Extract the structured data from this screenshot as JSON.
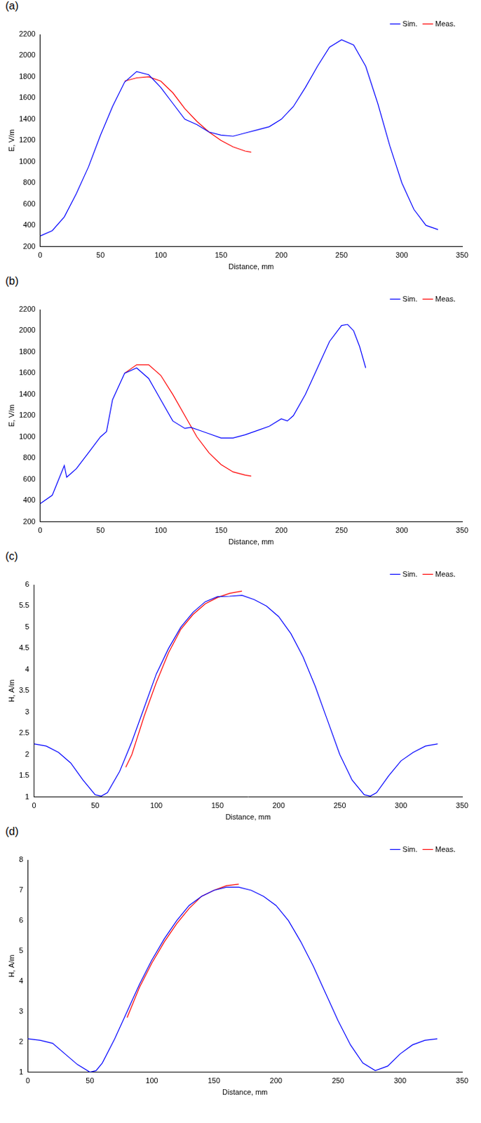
{
  "chart_data": [
    {
      "panel": "(a)",
      "type": "line",
      "x_label": "Distance, mm",
      "y_label": "E, V/m",
      "xlim": [
        0,
        350
      ],
      "xticks": [
        0,
        50,
        100,
        150,
        200,
        250,
        300,
        350
      ],
      "ylim": [
        200,
        2200
      ],
      "yticks": [
        200,
        400,
        600,
        800,
        1000,
        1200,
        1400,
        1600,
        1800,
        2000,
        2200
      ],
      "grid": false,
      "legend": "upper right",
      "series": [
        {
          "name": "Sim.",
          "color": "#0000ff",
          "x": [
            0,
            10,
            20,
            30,
            40,
            50,
            60,
            70,
            80,
            90,
            100,
            110,
            120,
            130,
            140,
            150,
            160,
            170,
            180,
            190,
            200,
            210,
            220,
            230,
            240,
            250,
            260,
            270,
            280,
            290,
            300,
            310,
            320,
            330
          ],
          "values": [
            300,
            350,
            480,
            700,
            950,
            1250,
            1520,
            1750,
            1850,
            1820,
            1700,
            1550,
            1400,
            1350,
            1280,
            1250,
            1240,
            1270,
            1300,
            1330,
            1400,
            1520,
            1700,
            1900,
            2080,
            2150,
            2100,
            1900,
            1550,
            1150,
            800,
            550,
            400,
            360
          ]
        },
        {
          "name": "Meas.",
          "color": "#ff0000",
          "x": [
            70,
            80,
            90,
            100,
            110,
            120,
            130,
            140,
            150,
            160,
            170,
            175
          ],
          "values": [
            1760,
            1790,
            1800,
            1760,
            1650,
            1500,
            1380,
            1280,
            1200,
            1140,
            1100,
            1090
          ]
        }
      ]
    },
    {
      "panel": "(b)",
      "type": "line",
      "x_label": "Distance, mm",
      "y_label": "E, V/m",
      "xlim": [
        0,
        350
      ],
      "xticks": [
        0,
        50,
        100,
        150,
        200,
        250,
        300,
        350
      ],
      "ylim": [
        200,
        2200
      ],
      "yticks": [
        200,
        400,
        600,
        800,
        1000,
        1200,
        1400,
        1600,
        1800,
        2000,
        2200
      ],
      "grid": false,
      "legend": "upper right",
      "series": [
        {
          "name": "Sim.",
          "color": "#0000ff",
          "x": [
            0,
            10,
            20,
            22,
            30,
            40,
            50,
            55,
            60,
            70,
            80,
            90,
            100,
            110,
            120,
            125,
            130,
            140,
            150,
            160,
            170,
            180,
            190,
            200,
            205,
            210,
            220,
            230,
            240,
            250,
            255,
            260,
            265,
            270
          ],
          "values": [
            370,
            450,
            730,
            620,
            700,
            850,
            1000,
            1050,
            1350,
            1600,
            1650,
            1550,
            1350,
            1150,
            1080,
            1090,
            1070,
            1030,
            990,
            990,
            1020,
            1060,
            1100,
            1170,
            1150,
            1200,
            1400,
            1650,
            1900,
            2050,
            2060,
            2000,
            1850,
            1650
          ]
        },
        {
          "name": "Meas.",
          "color": "#ff0000",
          "x": [
            70,
            80,
            90,
            100,
            110,
            120,
            130,
            140,
            150,
            160,
            170,
            175
          ],
          "values": [
            1600,
            1680,
            1680,
            1580,
            1400,
            1200,
            1000,
            850,
            740,
            670,
            640,
            630
          ]
        }
      ]
    },
    {
      "panel": "(c)",
      "type": "line",
      "x_label": "Distance, mm",
      "y_label": "H, A/m",
      "xlim": [
        0,
        350
      ],
      "xticks": [
        0,
        50,
        100,
        150,
        200,
        250,
        300,
        350
      ],
      "ylim": [
        1,
        6
      ],
      "yticks": [
        1,
        1.5,
        2,
        2.5,
        3,
        3.5,
        4,
        4.5,
        5,
        5.5,
        6
      ],
      "grid": false,
      "legend": "upper right",
      "series": [
        {
          "name": "Sim.",
          "color": "#0000ff",
          "x": [
            0,
            10,
            20,
            30,
            40,
            50,
            55,
            60,
            70,
            80,
            90,
            100,
            110,
            120,
            130,
            140,
            150,
            160,
            170,
            180,
            190,
            200,
            210,
            220,
            230,
            240,
            250,
            260,
            270,
            275,
            280,
            290,
            300,
            310,
            320,
            330
          ],
          "values": [
            2.25,
            2.2,
            2.05,
            1.8,
            1.4,
            1.05,
            1.02,
            1.1,
            1.6,
            2.3,
            3.1,
            3.9,
            4.5,
            5.0,
            5.35,
            5.6,
            5.72,
            5.73,
            5.75,
            5.65,
            5.5,
            5.25,
            4.85,
            4.3,
            3.6,
            2.8,
            2.0,
            1.4,
            1.05,
            1.02,
            1.1,
            1.5,
            1.85,
            2.05,
            2.2,
            2.25
          ]
        },
        {
          "name": "Meas.",
          "color": "#ff0000",
          "x": [
            75,
            80,
            90,
            100,
            110,
            120,
            130,
            140,
            150,
            160,
            170
          ],
          "values": [
            1.7,
            2.0,
            2.9,
            3.7,
            4.4,
            4.95,
            5.3,
            5.55,
            5.7,
            5.8,
            5.85
          ]
        }
      ]
    },
    {
      "panel": "(d)",
      "type": "line",
      "x_label": "Distance, mm",
      "y_label": "H, A/m",
      "xlim": [
        0,
        350
      ],
      "xticks": [
        0,
        50,
        100,
        150,
        200,
        250,
        300,
        350
      ],
      "ylim": [
        1,
        8
      ],
      "yticks": [
        1,
        2,
        3,
        4,
        5,
        6,
        7,
        8
      ],
      "grid": false,
      "legend": "upper right",
      "series": [
        {
          "name": "Sim.",
          "color": "#0000ff",
          "x": [
            0,
            10,
            20,
            30,
            40,
            50,
            55,
            60,
            70,
            80,
            90,
            100,
            110,
            120,
            130,
            140,
            150,
            160,
            170,
            180,
            190,
            200,
            210,
            220,
            230,
            240,
            250,
            260,
            270,
            280,
            290,
            300,
            310,
            320,
            330
          ],
          "values": [
            2.1,
            2.05,
            1.95,
            1.6,
            1.25,
            1.0,
            1.05,
            1.3,
            2.1,
            3.0,
            3.9,
            4.7,
            5.4,
            6.0,
            6.5,
            6.8,
            7.0,
            7.1,
            7.1,
            7.0,
            6.8,
            6.5,
            6.0,
            5.3,
            4.5,
            3.6,
            2.7,
            1.9,
            1.3,
            1.05,
            1.2,
            1.6,
            1.9,
            2.05,
            2.1
          ]
        },
        {
          "name": "Meas.",
          "color": "#ff0000",
          "x": [
            80,
            90,
            100,
            110,
            120,
            130,
            140,
            150,
            160,
            170
          ],
          "values": [
            2.8,
            3.8,
            4.6,
            5.3,
            5.9,
            6.4,
            6.8,
            7.0,
            7.15,
            7.2
          ]
        }
      ]
    }
  ]
}
